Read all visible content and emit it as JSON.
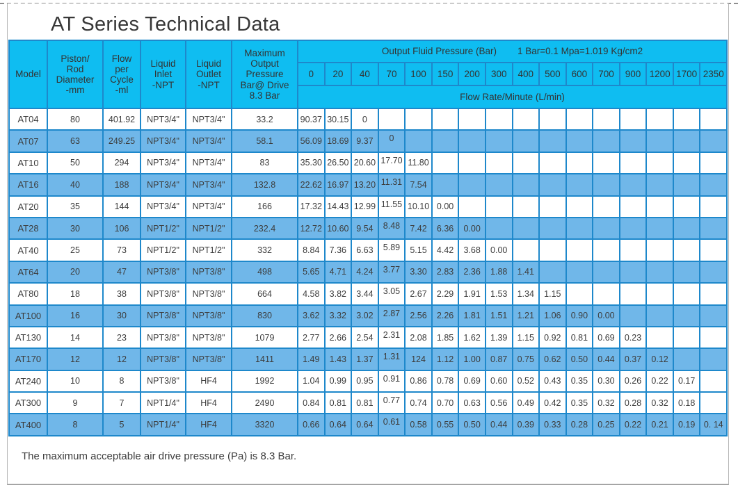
{
  "page": {
    "title": "AT Series Technical Data",
    "footnote": "The maximum acceptable air drive pressure (Pa) is 8.3 Bar."
  },
  "colors": {
    "header_fill": "#0fbdf1",
    "shaded_row_fill": "#70b7e9",
    "grid_border": "#1e88cb",
    "text": "#3c3c3c"
  },
  "table": {
    "left_headers": [
      {
        "id": "model",
        "lines": [
          "Model"
        ]
      },
      {
        "id": "piston-rod-diameter",
        "lines": [
          "Piston/",
          "Rod",
          "Diameter",
          "-mm"
        ]
      },
      {
        "id": "flow-per-cycle",
        "lines": [
          "Flow",
          "per",
          "Cycle",
          "-ml"
        ]
      },
      {
        "id": "liquid-inlet",
        "lines": [
          "Liquid",
          "Inlet",
          "-NPT"
        ]
      },
      {
        "id": "liquid-outlet",
        "lines": [
          "Liquid",
          "Outlet",
          "-NPT"
        ]
      },
      {
        "id": "max-output-pressure",
        "lines": [
          "Maximum",
          "Output",
          "Pressure",
          "Bar@ Drive",
          "8.3 Bar"
        ]
      }
    ],
    "pressure_group": {
      "title": "Output Fluid Pressure (Bar)",
      "note": "1 Bar=0.1 Mpa=1.019 Kg/cm2"
    },
    "pressure_columns": [
      "0",
      "20",
      "40",
      "70",
      "100",
      "150",
      "200",
      "300",
      "400",
      "500",
      "600",
      "700",
      "900",
      "1200",
      "1700",
      "2350"
    ],
    "flow_rate_label": "Flow Rate/Minute (L/min)",
    "rows": [
      {
        "model": "AT04",
        "piston": "80",
        "flow_cycle": "401.92",
        "inlet": "NPT3/4\"",
        "outlet": "NPT3/4\"",
        "max_out": "33.2",
        "shaded": false,
        "flows": [
          "90.37",
          "30.15",
          "0"
        ]
      },
      {
        "model": "AT07",
        "piston": "63",
        "flow_cycle": "249.25",
        "inlet": "NPT3/4\"",
        "outlet": "NPT3/4\"",
        "max_out": "58.1",
        "shaded": true,
        "flows": [
          "56.09",
          "18.69",
          "9.37",
          "0"
        ]
      },
      {
        "model": "AT10",
        "piston": "50",
        "flow_cycle": "294",
        "inlet": "NPT3/4\"",
        "outlet": "NPT3/4\"",
        "max_out": "83",
        "shaded": false,
        "flows": [
          "35.30",
          "26.50",
          "20.60",
          "17.70",
          "11.80"
        ]
      },
      {
        "model": "AT16",
        "piston": "40",
        "flow_cycle": "188",
        "inlet": "NPT3/4\"",
        "outlet": "NPT3/4\"",
        "max_out": "132.8",
        "shaded": true,
        "flows": [
          "22.62",
          "16.97",
          "13.20",
          "11.31",
          "7.54"
        ]
      },
      {
        "model": "AT20",
        "piston": "35",
        "flow_cycle": "144",
        "inlet": "NPT3/4\"",
        "outlet": "NPT3/4\"",
        "max_out": "166",
        "shaded": false,
        "flows": [
          "17.32",
          "14.43",
          "12.99",
          "11.55",
          "10.10",
          "0.00"
        ]
      },
      {
        "model": "AT28",
        "piston": "30",
        "flow_cycle": "106",
        "inlet": "NPT1/2\"",
        "outlet": "NPT1/2\"",
        "max_out": "232.4",
        "shaded": true,
        "flows": [
          "12.72",
          "10.60",
          "9.54",
          "8.48",
          "7.42",
          "6.36",
          "0.00"
        ]
      },
      {
        "model": "AT40",
        "piston": "25",
        "flow_cycle": "73",
        "inlet": "NPT1/2\"",
        "outlet": "NPT1/2\"",
        "max_out": "332",
        "shaded": false,
        "flows": [
          "8.84",
          "7.36",
          "6.63",
          "5.89",
          "5.15",
          "4.42",
          "3.68",
          "0.00"
        ]
      },
      {
        "model": "AT64",
        "piston": "20",
        "flow_cycle": "47",
        "inlet": "NPT3/8\"",
        "outlet": "NPT3/8\"",
        "max_out": "498",
        "shaded": true,
        "flows": [
          "5.65",
          "4.71",
          "4.24",
          "3.77",
          "3.30",
          "2.83",
          "2.36",
          "1.88",
          "1.41"
        ]
      },
      {
        "model": "AT80",
        "piston": "18",
        "flow_cycle": "38",
        "inlet": "NPT3/8\"",
        "outlet": "NPT3/8\"",
        "max_out": "664",
        "shaded": false,
        "flows": [
          "4.58",
          "3.82",
          "3.44",
          "3.05",
          "2.67",
          "2.29",
          "1.91",
          "1.53",
          "1.34",
          "1.15"
        ]
      },
      {
        "model": "AT100",
        "piston": "16",
        "flow_cycle": "30",
        "inlet": "NPT3/8\"",
        "outlet": "NPT3/8\"",
        "max_out": "830",
        "shaded": true,
        "flows": [
          "3.62",
          "3.32",
          "3.02",
          "2.87",
          "2.56",
          "2.26",
          "1.81",
          "1.51",
          "1.21",
          "1.06",
          "0.90",
          "0.00"
        ]
      },
      {
        "model": "AT130",
        "piston": "14",
        "flow_cycle": "23",
        "inlet": "NPT3/8\"",
        "outlet": "NPT3/8\"",
        "max_out": "1079",
        "shaded": false,
        "flows": [
          "2.77",
          "2.66",
          "2.54",
          "2.31",
          "2.08",
          "1.85",
          "1.62",
          "1.39",
          "1.15",
          "0.92",
          "0.81",
          "0.69",
          "0.23"
        ]
      },
      {
        "model": "AT170",
        "piston": "12",
        "flow_cycle": "12",
        "inlet": "NPT3/8\"",
        "outlet": "NPT3/8\"",
        "max_out": "1411",
        "shaded": true,
        "flows": [
          "1.49",
          "1.43",
          "1.37",
          "1.31",
          "124",
          "1.12",
          "1.00",
          "0.87",
          "0.75",
          "0.62",
          "0.50",
          "0.44",
          "0.37",
          "0.12"
        ]
      },
      {
        "model": "AT240",
        "piston": "10",
        "flow_cycle": "8",
        "inlet": "NPT3/8\"",
        "outlet": "HF4",
        "max_out": "1992",
        "shaded": false,
        "flows": [
          "1.04",
          "0.99",
          "0.95",
          "0.91",
          "0.86",
          "0.78",
          "0.69",
          "0.60",
          "0.52",
          "0.43",
          "0.35",
          "0.30",
          "0.26",
          "0.22",
          "0.17"
        ]
      },
      {
        "model": "AT300",
        "piston": "9",
        "flow_cycle": "7",
        "inlet": "NPT1/4\"",
        "outlet": "HF4",
        "max_out": "2490",
        "shaded": false,
        "flows": [
          "0.84",
          "0.81",
          "0.81",
          "0.77",
          "0.74",
          "0.70",
          "0.63",
          "0.56",
          "0.49",
          "0.42",
          "0.35",
          "0.32",
          "0.28",
          "0.32",
          "0.18"
        ]
      },
      {
        "model": "AT400",
        "piston": "8",
        "flow_cycle": "5",
        "inlet": "NPT1/4\"",
        "outlet": "HF4",
        "max_out": "3320",
        "shaded": true,
        "flows": [
          "0.66",
          "0.64",
          "0.64",
          "0.61",
          "0.58",
          "0.55",
          "0.50",
          "0.44",
          "0.39",
          "0.33",
          "0.28",
          "0.25",
          "0.22",
          "0.21",
          "0.19",
          "0. 14"
        ]
      }
    ]
  }
}
